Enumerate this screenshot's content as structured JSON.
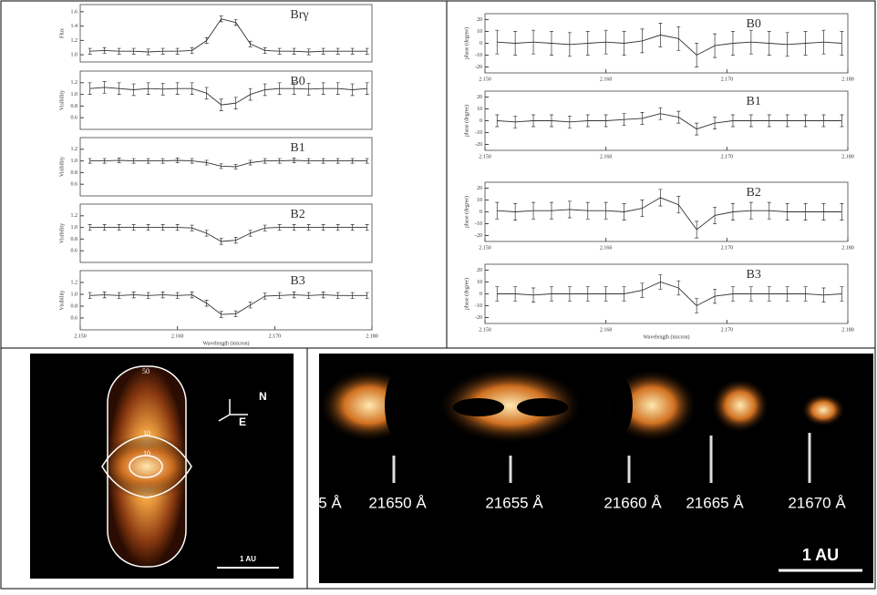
{
  "chart_data": [
    {
      "type": "line",
      "title": "Brγ",
      "y_label": "Flux",
      "color": "#333",
      "error": 0.04,
      "xlim": [
        2.15,
        2.18
      ],
      "ylim": [
        0.9,
        1.7
      ],
      "yticks": [
        {
          "value": 1,
          "label": "1.0"
        },
        {
          "value": 1.2,
          "label": "1.2"
        },
        {
          "value": 1.4,
          "label": "1.4"
        },
        {
          "value": 1.6,
          "label": "1.6"
        }
      ],
      "x": [
        2.151,
        2.1525,
        2.154,
        2.1555,
        2.157,
        2.1585,
        2.16,
        2.1615,
        2.163,
        2.1645,
        2.166,
        2.1675,
        2.169,
        2.1705,
        2.172,
        2.1735,
        2.175,
        2.1765,
        2.178,
        2.1795
      ],
      "values": [
        1.05,
        1.06,
        1.05,
        1.05,
        1.04,
        1.05,
        1.05,
        1.06,
        1.2,
        1.5,
        1.45,
        1.15,
        1.06,
        1.05,
        1.05,
        1.04,
        1.05,
        1.05,
        1.05,
        1.05
      ]
    },
    {
      "type": "line",
      "title": "B0",
      "y_label": "Visibility",
      "color": "#333",
      "error": 0.1,
      "xlim": [
        2.15,
        2.18
      ],
      "ylim": [
        0.4,
        1.4
      ],
      "yticks": [
        {
          "value": 0.6,
          "label": "0.6"
        },
        {
          "value": 0.8,
          "label": "0.8"
        },
        {
          "value": 1,
          "label": "1.0"
        },
        {
          "value": 1.2,
          "label": "1.2"
        }
      ],
      "x": [
        2.151,
        2.1525,
        2.154,
        2.1555,
        2.157,
        2.1585,
        2.16,
        2.1615,
        2.163,
        2.1645,
        2.166,
        2.1675,
        2.169,
        2.1705,
        2.172,
        2.1735,
        2.175,
        2.1765,
        2.178,
        2.1795
      ],
      "values": [
        1.1,
        1.12,
        1.1,
        1.08,
        1.1,
        1.09,
        1.1,
        1.1,
        1.02,
        0.82,
        0.85,
        1.0,
        1.08,
        1.1,
        1.1,
        1.09,
        1.1,
        1.1,
        1.08,
        1.1
      ]
    },
    {
      "type": "line",
      "title": "B1",
      "y_label": "Visibility",
      "color": "#333",
      "error": 0.04,
      "xlim": [
        2.15,
        2.18
      ],
      "ylim": [
        0.4,
        1.4
      ],
      "yticks": [
        {
          "value": 0.6,
          "label": "0.6"
        },
        {
          "value": 0.8,
          "label": "0.8"
        },
        {
          "value": 1,
          "label": "1.0"
        },
        {
          "value": 1.2,
          "label": "1.2"
        }
      ],
      "x": [
        2.151,
        2.1525,
        2.154,
        2.1555,
        2.157,
        2.1585,
        2.16,
        2.1615,
        2.163,
        2.1645,
        2.166,
        2.1675,
        2.169,
        2.1705,
        2.172,
        2.1735,
        2.175,
        2.1765,
        2.178,
        2.1795
      ],
      "values": [
        1.0,
        1.0,
        1.01,
        1.0,
        1.0,
        1.0,
        1.01,
        1.0,
        0.97,
        0.91,
        0.9,
        0.97,
        1.0,
        1.0,
        1.01,
        1.0,
        1.0,
        1.0,
        1.0,
        1.0
      ]
    },
    {
      "type": "line",
      "title": "B2",
      "y_label": "Visibility",
      "color": "#333",
      "error": 0.05,
      "xlim": [
        2.15,
        2.18
      ],
      "ylim": [
        0.4,
        1.4
      ],
      "yticks": [
        {
          "value": 0.6,
          "label": "0.6"
        },
        {
          "value": 0.8,
          "label": "0.8"
        },
        {
          "value": 1,
          "label": "1.0"
        },
        {
          "value": 1.2,
          "label": "1.2"
        }
      ],
      "x": [
        2.151,
        2.1525,
        2.154,
        2.1555,
        2.157,
        2.1585,
        2.16,
        2.1615,
        2.163,
        2.1645,
        2.166,
        2.1675,
        2.169,
        2.1705,
        2.172,
        2.1735,
        2.175,
        2.1765,
        2.178,
        2.1795
      ],
      "values": [
        1.0,
        1.0,
        1.0,
        1.0,
        1.0,
        1.0,
        1.0,
        0.99,
        0.9,
        0.76,
        0.78,
        0.9,
        0.99,
        1.0,
        1.0,
        1.0,
        1.0,
        1.0,
        1.0,
        1.0
      ]
    },
    {
      "type": "line",
      "title": "B3",
      "y_label": "Visibility",
      "x_label": "Wavelength (micron)",
      "color": "#333",
      "error": 0.05,
      "xlim": [
        2.15,
        2.18
      ],
      "ylim": [
        0.4,
        1.4
      ],
      "yticks": [
        {
          "value": 0.6,
          "label": "0.6"
        },
        {
          "value": 0.8,
          "label": "0.8"
        },
        {
          "value": 1,
          "label": "1.0"
        },
        {
          "value": 1.2,
          "label": "1.2"
        }
      ],
      "xticks": [
        {
          "value": 2.15,
          "label": "2.150"
        },
        {
          "value": 2.16,
          "label": "2.160"
        },
        {
          "value": 2.17,
          "label": "2.170"
        },
        {
          "value": 2.18,
          "label": "2.180"
        }
      ],
      "x": [
        2.151,
        2.1525,
        2.154,
        2.1555,
        2.157,
        2.1585,
        2.16,
        2.1615,
        2.163,
        2.1645,
        2.166,
        2.1675,
        2.169,
        2.1705,
        2.172,
        2.1735,
        2.175,
        2.1765,
        2.178,
        2.1795
      ],
      "values": [
        0.98,
        0.99,
        0.98,
        0.99,
        0.98,
        0.99,
        0.98,
        0.99,
        0.85,
        0.66,
        0.67,
        0.82,
        0.97,
        0.98,
        0.99,
        0.98,
        0.99,
        0.98,
        0.98,
        0.98
      ]
    },
    {
      "type": "line",
      "title": "B0",
      "y_label": "phase (degree)",
      "color": "#333",
      "error": 10,
      "xlim": [
        2.15,
        2.18
      ],
      "ylim": [
        -25,
        25
      ],
      "yticks": [
        -20,
        -10,
        0,
        10,
        20
      ],
      "xticks": [
        {
          "value": 2.15,
          "label": "2.150"
        },
        {
          "value": 2.16,
          "label": "2.160"
        },
        {
          "value": 2.17,
          "label": "2.170"
        },
        {
          "value": 2.18,
          "label": "2.180"
        }
      ],
      "x": [
        2.151,
        2.1525,
        2.154,
        2.1555,
        2.157,
        2.1585,
        2.16,
        2.1615,
        2.163,
        2.1645,
        2.166,
        2.1675,
        2.169,
        2.1705,
        2.172,
        2.1735,
        2.175,
        2.1765,
        2.178,
        2.1795
      ],
      "values": [
        1,
        0,
        1,
        0,
        -1,
        0,
        1,
        0,
        2,
        7,
        4,
        -10,
        -2,
        0,
        1,
        0,
        -1,
        0,
        1,
        0
      ]
    },
    {
      "type": "line",
      "title": "B1",
      "y_label": "phase (degree)",
      "color": "#333",
      "error": 5,
      "xlim": [
        2.15,
        2.18
      ],
      "ylim": [
        -25,
        25
      ],
      "yticks": [
        -20,
        -10,
        0,
        10,
        20
      ],
      "xticks": [
        {
          "value": 2.15,
          "label": "2.150"
        },
        {
          "value": 2.16,
          "label": "2.160"
        },
        {
          "value": 2.17,
          "label": "2.170"
        },
        {
          "value": 2.18,
          "label": "2.180"
        }
      ],
      "x": [
        2.151,
        2.1525,
        2.154,
        2.1555,
        2.157,
        2.1585,
        2.16,
        2.1615,
        2.163,
        2.1645,
        2.166,
        2.1675,
        2.169,
        2.1705,
        2.172,
        2.1735,
        2.175,
        2.1765,
        2.178,
        2.1795
      ],
      "values": [
        0,
        -1,
        0,
        0,
        -1,
        0,
        0,
        1,
        2,
        6,
        3,
        -7,
        -2,
        0,
        0,
        0,
        0,
        0,
        0,
        0
      ]
    },
    {
      "type": "line",
      "title": "B2",
      "y_label": "phase (degree)",
      "color": "#333",
      "error": 7,
      "xlim": [
        2.15,
        2.18
      ],
      "ylim": [
        -25,
        25
      ],
      "yticks": [
        -20,
        -10,
        0,
        10,
        20
      ],
      "xticks": [
        {
          "value": 2.15,
          "label": "2.150"
        },
        {
          "value": 2.16,
          "label": "2.160"
        },
        {
          "value": 2.17,
          "label": "2.170"
        },
        {
          "value": 2.18,
          "label": "2.180"
        }
      ],
      "x": [
        2.151,
        2.1525,
        2.154,
        2.1555,
        2.157,
        2.1585,
        2.16,
        2.1615,
        2.163,
        2.1645,
        2.166,
        2.1675,
        2.169,
        2.1705,
        2.172,
        2.1735,
        2.175,
        2.1765,
        2.178,
        2.1795
      ],
      "values": [
        1,
        0,
        1,
        1,
        2,
        1,
        1,
        0,
        3,
        12,
        6,
        -15,
        -3,
        0,
        1,
        1,
        0,
        0,
        0,
        0
      ]
    },
    {
      "type": "line",
      "title": "B3",
      "y_label": "phase (degree)",
      "x_label": "Wavelength (micron)",
      "color": "#333",
      "error": 6,
      "xlim": [
        2.15,
        2.18
      ],
      "ylim": [
        -25,
        25
      ],
      "yticks": [
        -20,
        -10,
        0,
        10,
        20
      ],
      "xticks": [
        {
          "value": 2.15,
          "label": "2.150"
        },
        {
          "value": 2.16,
          "label": "2.160"
        },
        {
          "value": 2.17,
          "label": "2.170"
        },
        {
          "value": 2.18,
          "label": "2.180"
        }
      ],
      "x": [
        2.151,
        2.1525,
        2.154,
        2.1555,
        2.157,
        2.1585,
        2.16,
        2.1615,
        2.163,
        2.1645,
        2.166,
        2.1675,
        2.169,
        2.1705,
        2.172,
        2.1735,
        2.175,
        2.1765,
        2.178,
        2.1795
      ],
      "values": [
        0,
        0,
        -1,
        0,
        0,
        0,
        0,
        0,
        3,
        10,
        5,
        -10,
        -2,
        0,
        0,
        0,
        0,
        0,
        -1,
        0
      ]
    }
  ],
  "images": {
    "left": {
      "contours": [
        "50",
        "10",
        "10"
      ],
      "north": "N",
      "east": "E",
      "scale": "1 AU"
    },
    "right": {
      "wavelengths": [
        "5 Å",
        "21650 Å",
        "21655 Å",
        "21660 Å",
        "21665 Å",
        "21670 Å"
      ],
      "scale": "1 AU"
    }
  }
}
